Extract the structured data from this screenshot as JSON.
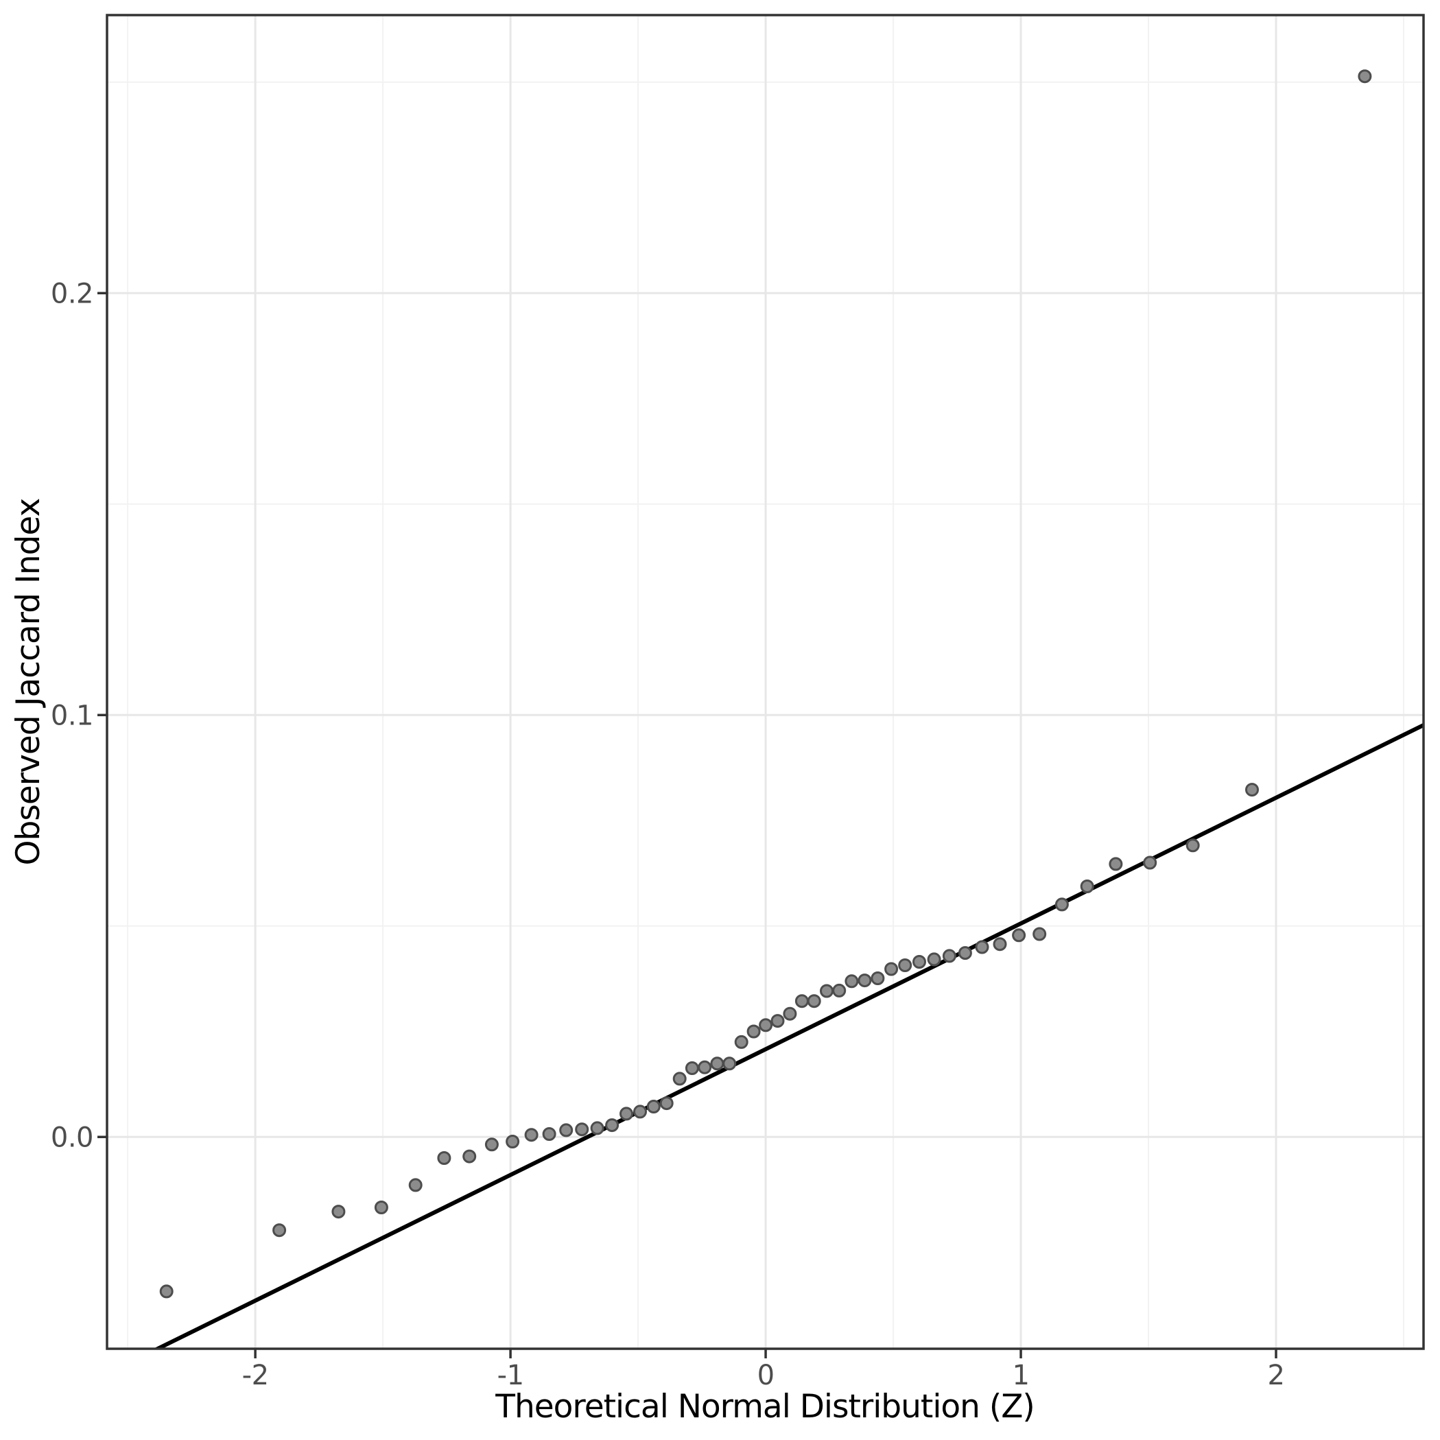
{
  "chart_data": {
    "type": "scatter",
    "subtype": "qq-plot",
    "title": "",
    "xlabel": "Theoretical Normal Distribution (Z)",
    "ylabel": "Observed Jaccard Index",
    "xlim": [
      -2.581,
      2.578
    ],
    "ylim": [
      -0.0502,
      0.2659
    ],
    "grid": true,
    "legend": "none",
    "x_axis": {
      "ticks": [
        -2,
        -1,
        0,
        1,
        2
      ],
      "tick_labels": [
        "-2",
        "-1",
        "0",
        "1",
        "2"
      ],
      "minor_ticks": [
        -2.5,
        -1.5,
        -0.5,
        0.5,
        1.5,
        2.5
      ]
    },
    "y_axis": {
      "ticks": [
        0.0,
        0.1,
        0.2
      ],
      "tick_labels": [
        "0.0",
        "0.1",
        "0.2"
      ],
      "minor_ticks": [
        0.05,
        0.15,
        0.25
      ]
    },
    "reference_line": {
      "slope": 0.0298,
      "intercept": 0.0208
    },
    "series": [
      {
        "name": "sample-quantiles",
        "points": [
          [
            -2.348,
            -0.0366
          ],
          [
            -1.906,
            -0.0221
          ],
          [
            -1.674,
            -0.0177
          ],
          [
            -1.506,
            -0.0167
          ],
          [
            -1.372,
            -0.0114
          ],
          [
            -1.26,
            -0.005
          ],
          [
            -1.161,
            -0.0046
          ],
          [
            -1.073,
            -0.0018
          ],
          [
            -0.992,
            -0.0011
          ],
          [
            -0.918,
            0.0005
          ],
          [
            -0.848,
            0.0007
          ],
          [
            -0.782,
            0.0016
          ],
          [
            -0.72,
            0.0018
          ],
          [
            -0.66,
            0.0021
          ],
          [
            -0.602,
            0.0028
          ],
          [
            -0.546,
            0.0055
          ],
          [
            -0.492,
            0.006
          ],
          [
            -0.439,
            0.0072
          ],
          [
            -0.388,
            0.008
          ],
          [
            -0.337,
            0.0138
          ],
          [
            -0.288,
            0.0163
          ],
          [
            -0.239,
            0.0165
          ],
          [
            -0.19,
            0.0174
          ],
          [
            -0.142,
            0.0174
          ],
          [
            -0.095,
            0.0225
          ],
          [
            -0.047,
            0.025
          ],
          [
            0.0,
            0.0265
          ],
          [
            0.047,
            0.0275
          ],
          [
            0.095,
            0.0292
          ],
          [
            0.142,
            0.0322
          ],
          [
            0.19,
            0.0322
          ],
          [
            0.239,
            0.0346
          ],
          [
            0.288,
            0.0347
          ],
          [
            0.337,
            0.0369
          ],
          [
            0.388,
            0.0371
          ],
          [
            0.439,
            0.0376
          ],
          [
            0.492,
            0.0398
          ],
          [
            0.546,
            0.0407
          ],
          [
            0.602,
            0.0415
          ],
          [
            0.66,
            0.0421
          ],
          [
            0.72,
            0.0429
          ],
          [
            0.782,
            0.0436
          ],
          [
            0.848,
            0.045
          ],
          [
            0.918,
            0.0457
          ],
          [
            0.992,
            0.0478
          ],
          [
            1.073,
            0.0481
          ],
          [
            1.161,
            0.0551
          ],
          [
            1.26,
            0.0594
          ],
          [
            1.372,
            0.0647
          ],
          [
            1.506,
            0.065
          ],
          [
            1.674,
            0.0691
          ],
          [
            1.906,
            0.0823
          ],
          [
            2.348,
            0.2514
          ]
        ]
      }
    ],
    "colors": {
      "point_fill": "#8C8C8C",
      "point_stroke": "#4D4D4D",
      "reference_line": "#000000",
      "grid_major": "#E7E7E7",
      "grid_minor": "#F2F2F2",
      "panel_border": "#333333",
      "tick_mark": "#333333",
      "axis_text": "#4D4D4D",
      "axis_title": "#000000",
      "background": "#FFFFFF"
    }
  }
}
